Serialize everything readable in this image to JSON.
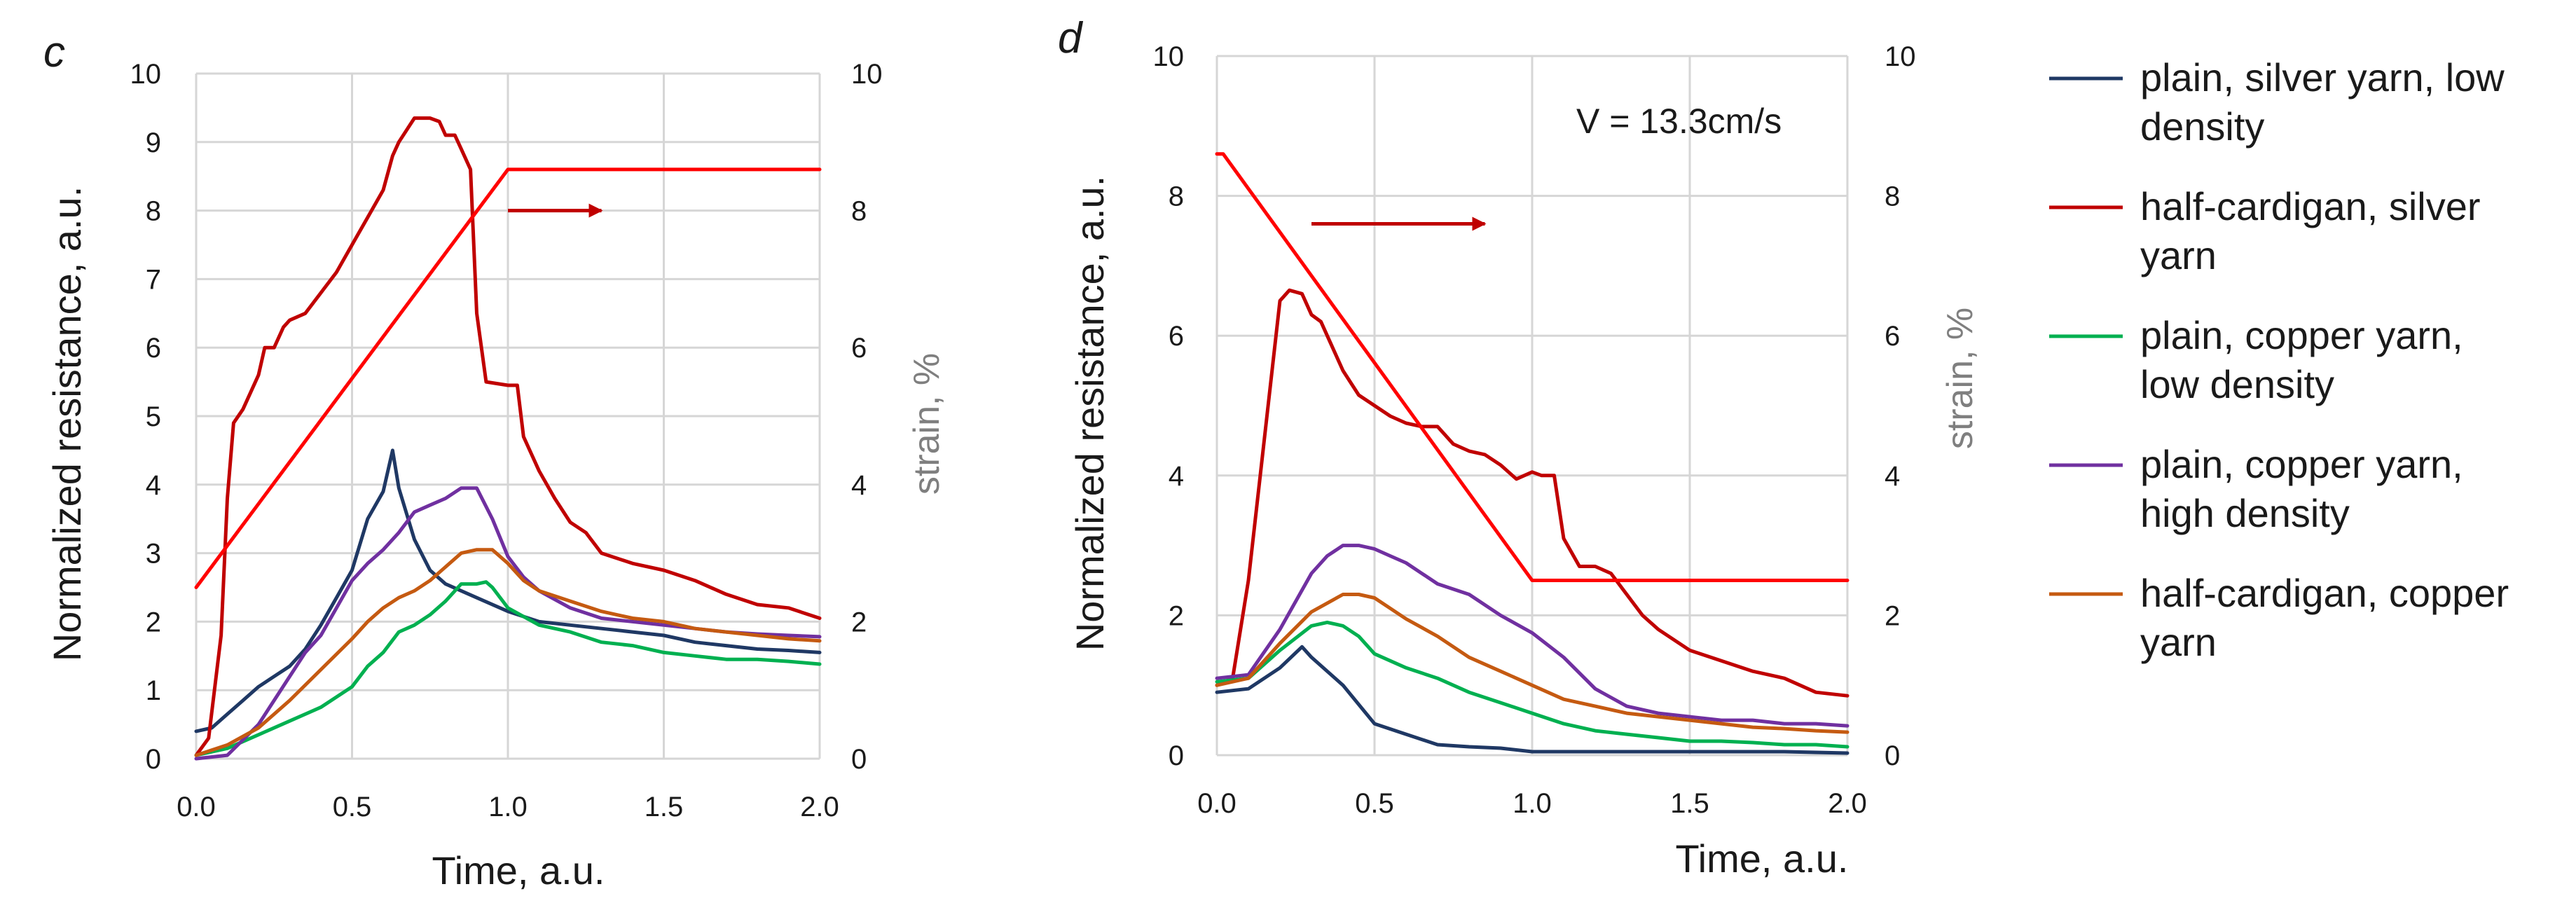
{
  "chart_data": [
    {
      "panel_label": "c",
      "type": "line",
      "xlabel": "Time, a.u.",
      "ylabel": "Normalized resistance, a.u.",
      "y2label": "strain, %",
      "xlim": [
        0,
        2
      ],
      "ylim": [
        0,
        10
      ],
      "y2lim": [
        0,
        10
      ],
      "x_ticks": [
        "0.0",
        "0.5",
        "1.0",
        "1.5",
        "2.0"
      ],
      "y_ticks": [
        "0",
        "1",
        "2",
        "3",
        "4",
        "5",
        "6",
        "7",
        "8",
        "9",
        "10"
      ],
      "y2_ticks": [
        "0",
        "2",
        "4",
        "6",
        "8",
        "10"
      ],
      "grid": true,
      "annotation": "",
      "series": [
        {
          "name": "plain, silver yarn, low density",
          "color": "#1f3864",
          "x": [
            0,
            0.05,
            0.1,
            0.15,
            0.2,
            0.25,
            0.3,
            0.35,
            0.4,
            0.45,
            0.5,
            0.55,
            0.6,
            0.63,
            0.65,
            0.7,
            0.75,
            0.8,
            0.9,
            1.0,
            1.1,
            1.2,
            1.3,
            1.4,
            1.5,
            1.6,
            1.7,
            1.8,
            1.9,
            2.0
          ],
          "y": [
            0.4,
            0.45,
            0.65,
            0.85,
            1.05,
            1.2,
            1.35,
            1.6,
            1.95,
            2.35,
            2.75,
            3.5,
            3.9,
            4.5,
            3.95,
            3.2,
            2.75,
            2.55,
            2.35,
            2.15,
            2.0,
            1.95,
            1.9,
            1.85,
            1.8,
            1.7,
            1.65,
            1.6,
            1.58,
            1.55
          ]
        },
        {
          "name": "half-cardigan, silver yarn",
          "color": "#c00000",
          "x": [
            0,
            0.04,
            0.08,
            0.1,
            0.12,
            0.15,
            0.2,
            0.22,
            0.25,
            0.28,
            0.3,
            0.35,
            0.4,
            0.45,
            0.5,
            0.55,
            0.6,
            0.63,
            0.65,
            0.7,
            0.75,
            0.78,
            0.8,
            0.83,
            0.85,
            0.88,
            0.9,
            0.93,
            1.0,
            1.03,
            1.05,
            1.1,
            1.15,
            1.2,
            1.25,
            1.3,
            1.4,
            1.5,
            1.6,
            1.7,
            1.8,
            1.9,
            2.0
          ],
          "y": [
            0.05,
            0.3,
            1.8,
            3.8,
            4.9,
            5.1,
            5.6,
            6.0,
            6.0,
            6.3,
            6.4,
            6.5,
            6.8,
            7.1,
            7.5,
            7.9,
            8.3,
            8.8,
            9.0,
            9.35,
            9.35,
            9.3,
            9.1,
            9.1,
            8.9,
            8.6,
            6.5,
            5.5,
            5.45,
            5.45,
            4.7,
            4.2,
            3.8,
            3.45,
            3.3,
            3.0,
            2.85,
            2.75,
            2.6,
            2.4,
            2.25,
            2.2,
            2.05
          ]
        },
        {
          "name": "plain, copper yarn, low density",
          "color": "#00b050",
          "x": [
            0,
            0.1,
            0.2,
            0.3,
            0.4,
            0.5,
            0.55,
            0.6,
            0.65,
            0.7,
            0.75,
            0.8,
            0.85,
            0.9,
            0.93,
            0.95,
            1.0,
            1.1,
            1.2,
            1.3,
            1.4,
            1.5,
            1.6,
            1.7,
            1.8,
            1.9,
            2.0
          ],
          "y": [
            0.05,
            0.15,
            0.35,
            0.55,
            0.75,
            1.05,
            1.35,
            1.55,
            1.85,
            1.95,
            2.1,
            2.3,
            2.55,
            2.55,
            2.58,
            2.5,
            2.2,
            1.95,
            1.85,
            1.7,
            1.65,
            1.55,
            1.5,
            1.45,
            1.45,
            1.42,
            1.38
          ]
        },
        {
          "name": "plain, copper yarn, high density",
          "color": "#7030a0",
          "x": [
            0,
            0.1,
            0.2,
            0.3,
            0.35,
            0.4,
            0.45,
            0.5,
            0.55,
            0.6,
            0.65,
            0.7,
            0.75,
            0.8,
            0.85,
            0.9,
            0.95,
            1.0,
            1.05,
            1.1,
            1.2,
            1.3,
            1.4,
            1.5,
            1.6,
            1.7,
            1.8,
            1.9,
            2.0
          ],
          "y": [
            0.0,
            0.05,
            0.5,
            1.2,
            1.55,
            1.8,
            2.2,
            2.6,
            2.85,
            3.05,
            3.3,
            3.6,
            3.7,
            3.8,
            3.95,
            3.95,
            3.5,
            2.95,
            2.65,
            2.45,
            2.2,
            2.05,
            2.0,
            1.95,
            1.9,
            1.85,
            1.82,
            1.8,
            1.78
          ]
        },
        {
          "name": "half-cardigan, copper yarn",
          "color": "#c55a11",
          "x": [
            0,
            0.1,
            0.2,
            0.3,
            0.4,
            0.5,
            0.55,
            0.6,
            0.65,
            0.7,
            0.75,
            0.8,
            0.85,
            0.9,
            0.95,
            1.0,
            1.05,
            1.1,
            1.2,
            1.3,
            1.4,
            1.5,
            1.6,
            1.7,
            1.8,
            1.9,
            2.0
          ],
          "y": [
            0.05,
            0.2,
            0.45,
            0.85,
            1.3,
            1.75,
            2.0,
            2.2,
            2.35,
            2.45,
            2.6,
            2.8,
            3.0,
            3.05,
            3.05,
            2.85,
            2.6,
            2.45,
            2.3,
            2.15,
            2.05,
            2.0,
            1.9,
            1.85,
            1.8,
            1.75,
            1.72
          ]
        },
        {
          "name": "strain",
          "color": "#ff0000",
          "axis": "right",
          "x": [
            0,
            1.0,
            2.0
          ],
          "y": [
            2.5,
            8.6,
            8.6
          ]
        }
      ],
      "arrow": {
        "from": [
          1.0,
          8.0
        ],
        "to": [
          1.3,
          8.0
        ],
        "color": "#c00000"
      }
    },
    {
      "panel_label": "d",
      "type": "line",
      "xlabel": "Time, a.u.",
      "ylabel": "Normalized resistance, a.u.",
      "y2label": "strain, %",
      "xlim": [
        0,
        2
      ],
      "ylim": [
        0,
        10
      ],
      "y2lim": [
        0,
        10
      ],
      "x_ticks": [
        "0.0",
        "0.5",
        "1.0",
        "1.5",
        "2.0"
      ],
      "y_ticks": [
        "0",
        "2",
        "4",
        "6",
        "8",
        "10"
      ],
      "y2_ticks": [
        "0",
        "2",
        "4",
        "6",
        "8",
        "10"
      ],
      "grid": true,
      "annotation": "V = 13.3cm/s",
      "series": [
        {
          "name": "plain, silver yarn, low density",
          "color": "#1f3864",
          "x": [
            0,
            0.1,
            0.2,
            0.27,
            0.3,
            0.4,
            0.5,
            0.6,
            0.7,
            0.8,
            0.9,
            1.0,
            1.2,
            1.4,
            1.6,
            1.8,
            2.0
          ],
          "y": [
            0.9,
            0.95,
            1.25,
            1.55,
            1.4,
            1.0,
            0.45,
            0.3,
            0.15,
            0.12,
            0.1,
            0.05,
            0.05,
            0.05,
            0.05,
            0.05,
            0.03
          ]
        },
        {
          "name": "half-cardigan, silver yarn",
          "color": "#c00000",
          "x": [
            0,
            0.05,
            0.1,
            0.15,
            0.2,
            0.23,
            0.27,
            0.3,
            0.33,
            0.37,
            0.4,
            0.45,
            0.5,
            0.55,
            0.6,
            0.65,
            0.7,
            0.75,
            0.8,
            0.85,
            0.9,
            0.95,
            1.0,
            1.03,
            1.07,
            1.1,
            1.15,
            1.2,
            1.25,
            1.3,
            1.35,
            1.4,
            1.5,
            1.6,
            1.7,
            1.8,
            1.9,
            2.0
          ],
          "y": [
            1.0,
            1.1,
            2.5,
            4.5,
            6.5,
            6.65,
            6.6,
            6.3,
            6.2,
            5.8,
            5.5,
            5.15,
            5.0,
            4.85,
            4.75,
            4.7,
            4.7,
            4.45,
            4.35,
            4.3,
            4.15,
            3.95,
            4.05,
            4.0,
            4.0,
            3.1,
            2.7,
            2.7,
            2.6,
            2.3,
            2.0,
            1.8,
            1.5,
            1.35,
            1.2,
            1.1,
            0.9,
            0.85
          ]
        },
        {
          "name": "plain, copper yarn, low density",
          "color": "#00b050",
          "x": [
            0,
            0.1,
            0.2,
            0.3,
            0.35,
            0.4,
            0.45,
            0.5,
            0.6,
            0.7,
            0.8,
            0.9,
            1.0,
            1.1,
            1.2,
            1.3,
            1.4,
            1.5,
            1.6,
            1.7,
            1.8,
            1.9,
            2.0
          ],
          "y": [
            1.05,
            1.1,
            1.5,
            1.85,
            1.9,
            1.85,
            1.7,
            1.45,
            1.25,
            1.1,
            0.9,
            0.75,
            0.6,
            0.45,
            0.35,
            0.3,
            0.25,
            0.2,
            0.2,
            0.18,
            0.15,
            0.15,
            0.12
          ]
        },
        {
          "name": "plain, copper yarn, high density",
          "color": "#7030a0",
          "x": [
            0,
            0.1,
            0.2,
            0.3,
            0.35,
            0.4,
            0.45,
            0.5,
            0.55,
            0.6,
            0.7,
            0.8,
            0.9,
            1.0,
            1.1,
            1.2,
            1.3,
            1.4,
            1.5,
            1.6,
            1.7,
            1.8,
            1.9,
            2.0
          ],
          "y": [
            1.1,
            1.15,
            1.8,
            2.6,
            2.85,
            3.0,
            3.0,
            2.95,
            2.85,
            2.75,
            2.45,
            2.3,
            2.0,
            1.75,
            1.4,
            0.95,
            0.7,
            0.6,
            0.55,
            0.5,
            0.5,
            0.45,
            0.45,
            0.42
          ]
        },
        {
          "name": "half-cardigan, copper yarn",
          "color": "#c55a11",
          "x": [
            0,
            0.1,
            0.2,
            0.3,
            0.4,
            0.45,
            0.5,
            0.55,
            0.6,
            0.7,
            0.8,
            0.9,
            1.0,
            1.1,
            1.2,
            1.3,
            1.4,
            1.5,
            1.6,
            1.7,
            1.8,
            1.9,
            2.0
          ],
          "y": [
            1.0,
            1.1,
            1.6,
            2.05,
            2.3,
            2.3,
            2.25,
            2.1,
            1.95,
            1.7,
            1.4,
            1.2,
            1.0,
            0.8,
            0.7,
            0.6,
            0.55,
            0.5,
            0.45,
            0.4,
            0.38,
            0.35,
            0.33
          ]
        },
        {
          "name": "strain",
          "color": "#ff0000",
          "axis": "right",
          "x": [
            0,
            0.02,
            1.0,
            2.0
          ],
          "y": [
            8.6,
            8.6,
            2.5,
            2.5
          ]
        }
      ],
      "arrow": {
        "from": [
          0.3,
          7.6
        ],
        "to": [
          0.85,
          7.6
        ],
        "color": "#c00000"
      }
    }
  ],
  "legend": [
    {
      "label_lines": [
        "plain, silver yarn, low",
        "density"
      ],
      "color": "#1f3864"
    },
    {
      "label_lines": [
        "half-cardigan, silver",
        "yarn"
      ],
      "color": "#c00000"
    },
    {
      "label_lines": [
        "plain, copper yarn,",
        "low density"
      ],
      "color": "#00b050"
    },
    {
      "label_lines": [
        "plain, copper yarn,",
        "high density"
      ],
      "color": "#7030a0"
    },
    {
      "label_lines": [
        "half-cardigan, copper",
        "yarn"
      ],
      "color": "#c55a11"
    }
  ]
}
